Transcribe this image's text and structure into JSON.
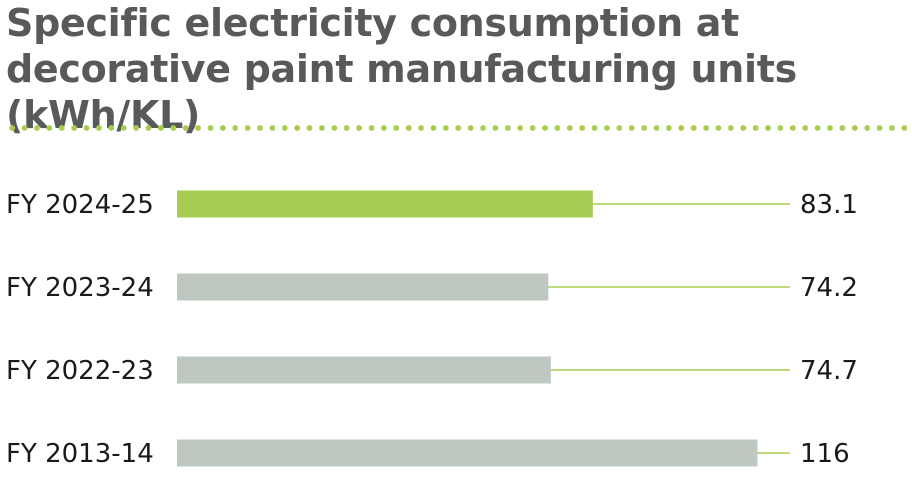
{
  "chart_data": {
    "type": "bar",
    "orientation": "horizontal",
    "title": "Specific electricity consumption at decorative paint manufacturing units (kWh/KL)",
    "categories": [
      "FY 2024-25",
      "FY 2023-24",
      "FY 2022-23",
      "FY 2013-14"
    ],
    "values": [
      83.1,
      74.2,
      74.7,
      116
    ],
    "value_labels": [
      "83.1",
      "74.2",
      "74.7",
      "116"
    ],
    "xlim": [
      0,
      121.5
    ],
    "grid": false,
    "legend": "none",
    "colors": {
      "highlight": "#a8cc52",
      "bar": "#bec8c0",
      "leader_line": "#a8cc52",
      "title": "#58595b",
      "text": "#1a1a1a"
    }
  }
}
